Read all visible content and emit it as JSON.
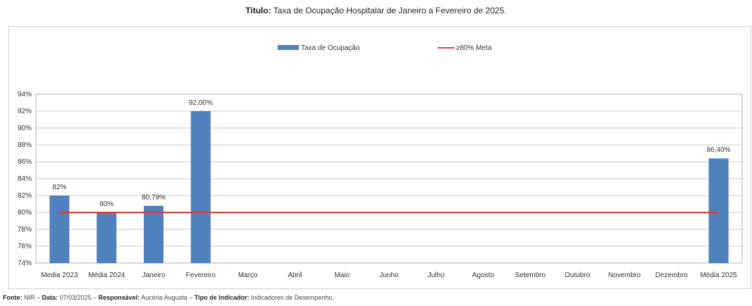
{
  "header": {
    "title_label": "Titulo:",
    "title_text": "Taxa de Ocupação Hospitalar de Janeiro a Fevereiro de 2025."
  },
  "footer": {
    "source_label": "Fonte:",
    "source_value": "NIR",
    "date_label": "Data:",
    "date_value": "07/03/2025",
    "responsible_label": "Responsável:",
    "responsible_value": "Aucéria Augusta",
    "indicator_label": "Tipo de Indicador:",
    "indicator_value": "Indicadores de Desempenho.",
    "separator": " – "
  },
  "chart_data": {
    "type": "bar",
    "categories": [
      "Media 2023",
      "Média 2024",
      "Janeiro",
      "Fevereiro",
      "Março",
      "Abril",
      "Maio",
      "Junho",
      "Julho",
      "Agosto",
      "Setembro",
      "Outubro",
      "Novembro",
      "Dezembro",
      "Média 2025"
    ],
    "series": [
      {
        "name": "Taxa de Ocupação",
        "color": "#4f81bd",
        "values": [
          82,
          80,
          80.79,
          92,
          null,
          null,
          null,
          null,
          null,
          null,
          null,
          null,
          null,
          null,
          86.4
        ],
        "data_labels": [
          "82%",
          "80%",
          "80,79%",
          "92,00%",
          "",
          "",
          "",
          "",
          "",
          "",
          "",
          "",
          "",
          "",
          "86,40%"
        ]
      }
    ],
    "reference_line": {
      "name": "≥80% Meta",
      "value": 80,
      "color": "#e03c3c"
    },
    "yticks": [
      74,
      76,
      78,
      80,
      82,
      84,
      86,
      88,
      90,
      92,
      94
    ],
    "ytick_labels": [
      "74%",
      "76%",
      "78%",
      "80%",
      "82%",
      "84%",
      "86%",
      "88%",
      "90%",
      "92%",
      "94%"
    ],
    "ylim": [
      74,
      94
    ],
    "grid": true,
    "legend_position": "top",
    "title": "",
    "xlabel": "",
    "ylabel": ""
  }
}
